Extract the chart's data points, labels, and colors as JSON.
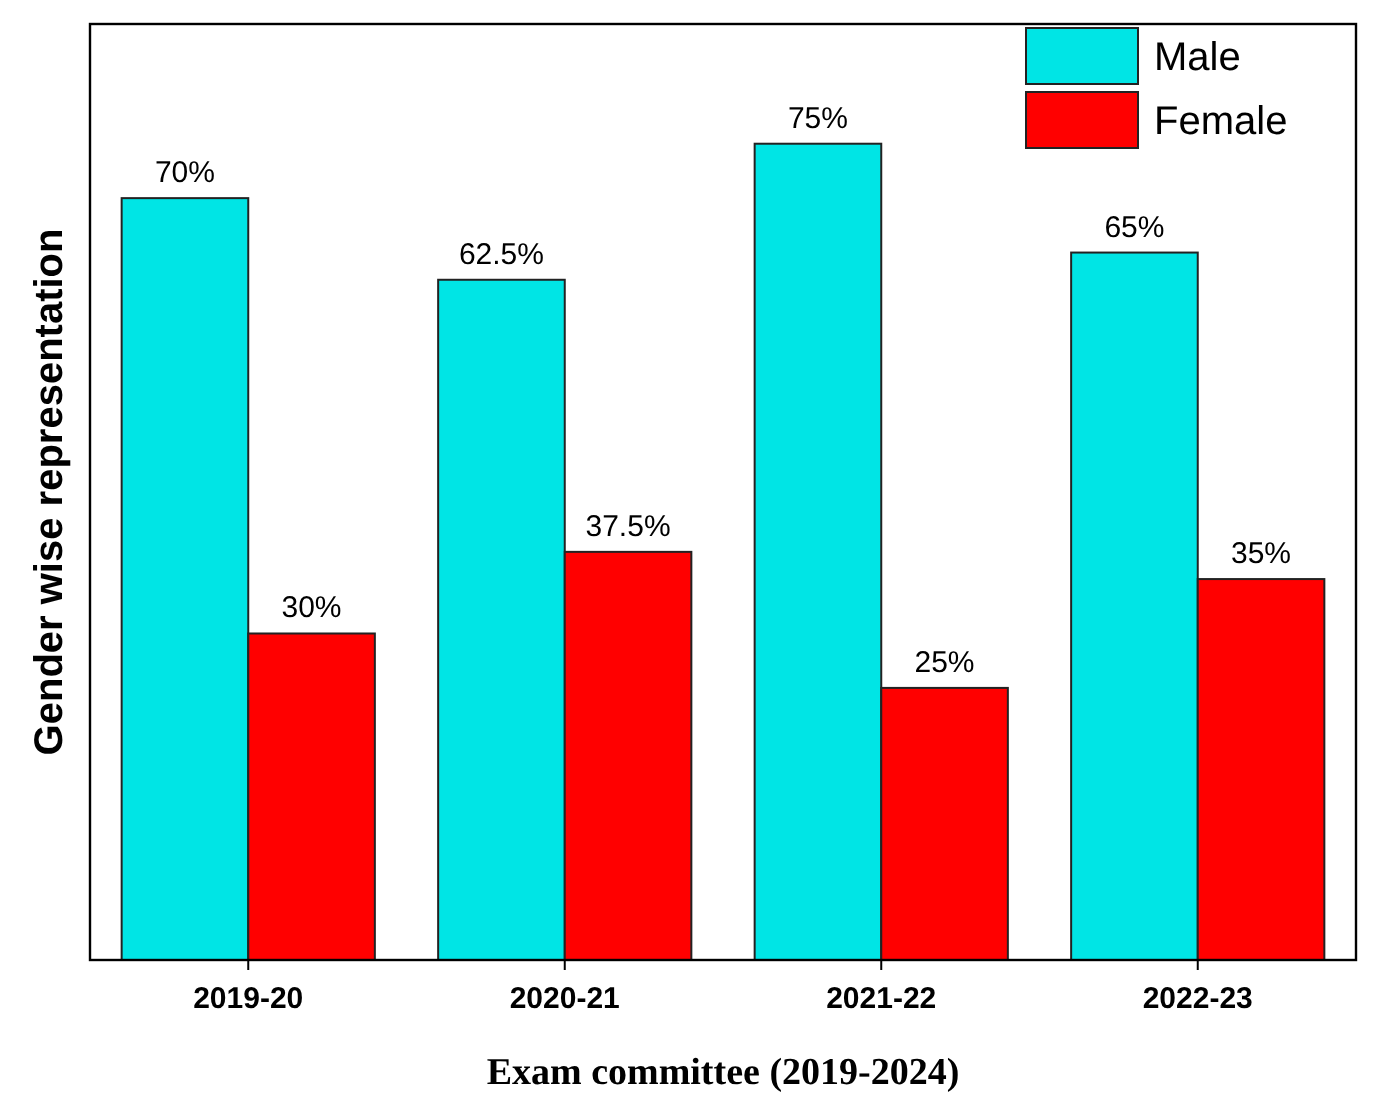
{
  "chart_data": {
    "type": "bar",
    "xlabel": "Exam committee (2019-2024)",
    "ylabel": "Gender wise representation",
    "categories": [
      "2019-20",
      "2020-21",
      "2021-22",
      "2022-23"
    ],
    "ylim": [
      0,
      86
    ],
    "legend": "top right",
    "tick_labels": "x",
    "series": [
      {
        "name": "Male",
        "color": "#00e5e5",
        "values": [
          70,
          62.5,
          75,
          65
        ],
        "value_labels": [
          "70%",
          "62.5%",
          "75%",
          "65%"
        ]
      },
      {
        "name": "Female",
        "color": "#ff0000",
        "values": [
          30,
          37.5,
          25,
          35
        ],
        "value_labels": [
          "30%",
          "37.5%",
          "25%",
          "35%"
        ]
      }
    ]
  }
}
